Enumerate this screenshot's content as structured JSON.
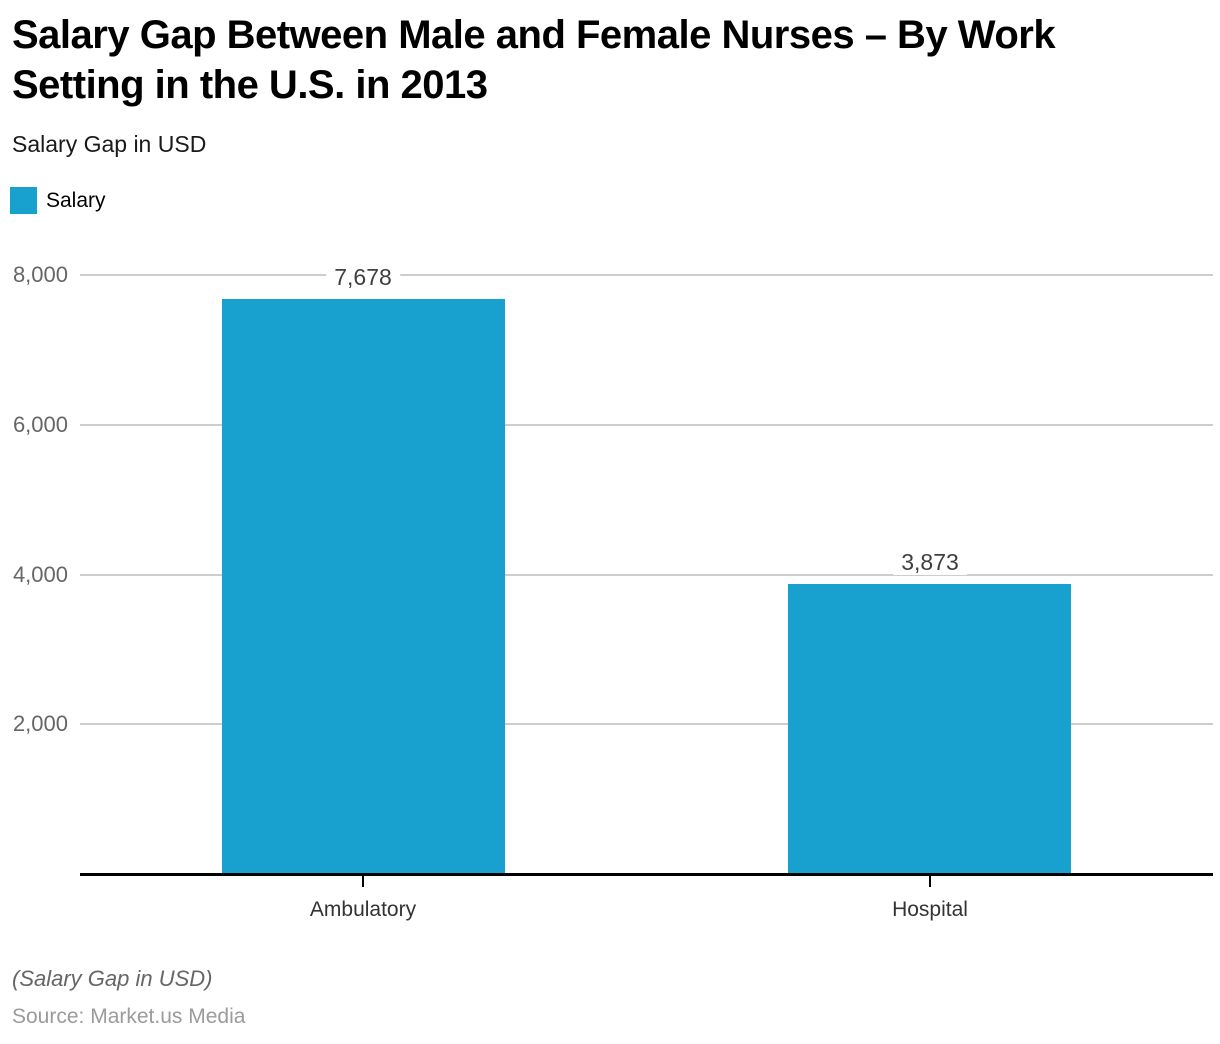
{
  "title": "Salary Gap Between Male and Female Nurses – By Work Setting in the U.S. in 2013",
  "subtitle": "Salary Gap in USD",
  "legend": {
    "label": "Salary",
    "color": "#18A0CE"
  },
  "footer": {
    "note": "(Salary Gap in USD)",
    "source": "Source: Market.us Media"
  },
  "colors": {
    "bar": "#18A0CE",
    "gridline": "#cdcdcd",
    "axis_line": "#000000",
    "ytick_text": "#666666",
    "value_label_text": "#3f3f3f",
    "category_text": "#333333",
    "note_text": "#666666",
    "source_text": "#9b9b9b"
  },
  "chart_data": {
    "type": "bar",
    "title": "Salary Gap Between Male and Female Nurses – By Work Setting in the U.S. in 2013",
    "subtitle": "Salary Gap in USD",
    "series_name": "Salary",
    "categories": [
      "Ambulatory",
      "Hospital"
    ],
    "values": [
      7678,
      3873
    ],
    "value_labels": [
      "7,678",
      "3,873"
    ],
    "xlabel": "",
    "ylabel": "Salary Gap in USD",
    "ylim": [
      0,
      8000
    ],
    "yticks": [
      2000,
      4000,
      6000,
      8000
    ],
    "ytick_labels": [
      "2,000",
      "4,000",
      "6,000",
      "8,000"
    ],
    "grid": true,
    "legend_position": "top-left",
    "bar_color": "#18A0CE",
    "note": "(Salary Gap in USD)",
    "source": "Source: Market.us Media"
  }
}
